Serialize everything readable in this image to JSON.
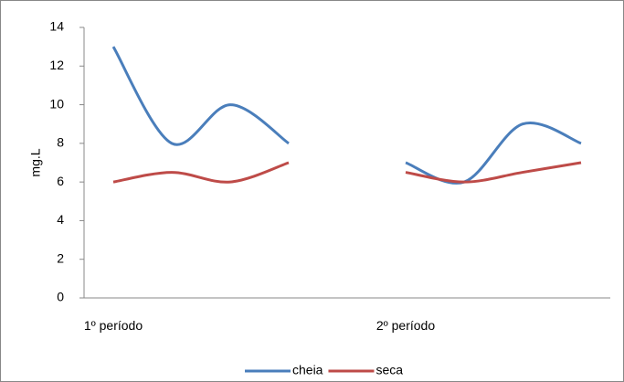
{
  "chart_data": {
    "type": "line",
    "y_label": "mg.L",
    "categories": [
      "1º período",
      null,
      null,
      null,
      null,
      "2º período",
      null,
      null,
      null
    ],
    "series": [
      {
        "name": "cheia",
        "color": "#4a7ebb",
        "values": [
          13,
          8,
          10,
          8,
          null,
          7,
          6,
          9,
          8
        ]
      },
      {
        "name": "seca",
        "color": "#be4b48",
        "values": [
          6,
          6.5,
          6,
          7,
          null,
          6.5,
          6,
          6.5,
          7
        ]
      }
    ],
    "ylim": [
      0,
      14
    ],
    "yticks": [
      0,
      2,
      4,
      6,
      8,
      10,
      12,
      14
    ],
    "legend": "bottom",
    "smooth": true
  }
}
